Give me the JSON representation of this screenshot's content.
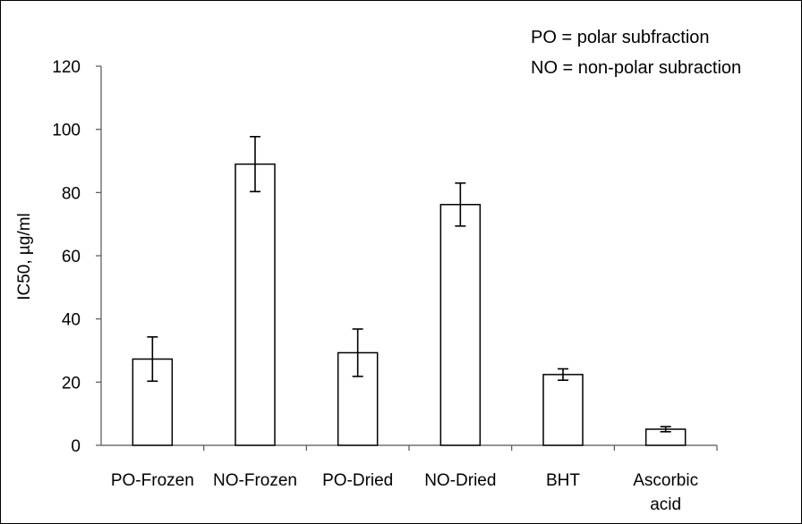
{
  "chart_data": {
    "type": "bar",
    "categories": [
      [
        "PO-Frozen"
      ],
      [
        "NO-Frozen"
      ],
      [
        "PO-Dried"
      ],
      [
        "NO-Dried"
      ],
      [
        "BHT"
      ],
      [
        "Ascorbic",
        "acid"
      ]
    ],
    "values": [
      27.3,
      89.0,
      29.3,
      76.2,
      22.4,
      5.1
    ],
    "errors": [
      7.0,
      8.7,
      7.5,
      6.8,
      1.8,
      0.8
    ],
    "ylabel": "IC50, µg/ml",
    "ylim": [
      0,
      120
    ],
    "yticks": [
      0,
      20,
      40,
      60,
      80,
      100,
      120
    ],
    "grid": false,
    "legend": "top-right",
    "bar_fill": "#ffffff",
    "bar_stroke": "#000000",
    "notes": [
      "PO = polar subfraction",
      "NO = non-polar subraction"
    ]
  }
}
